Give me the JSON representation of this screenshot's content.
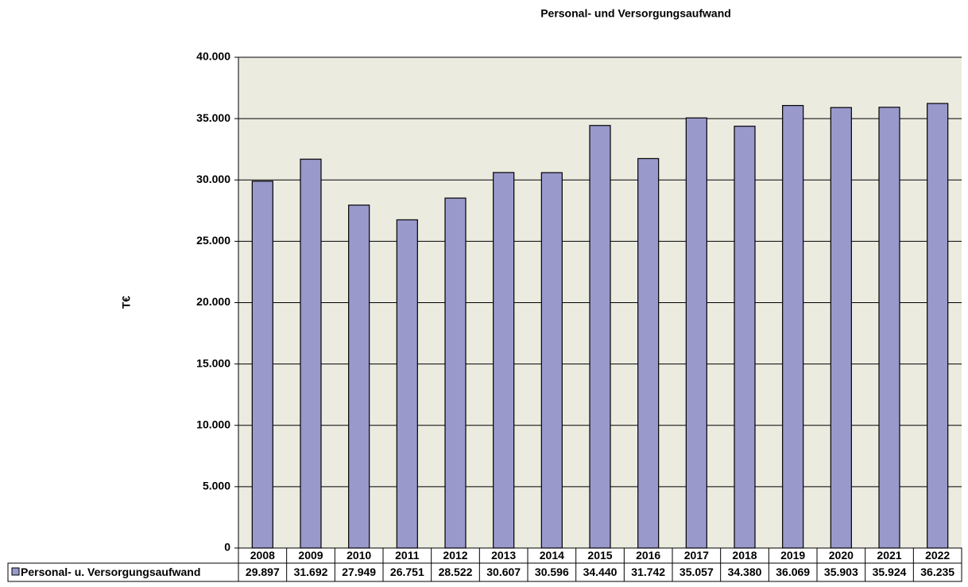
{
  "chart_data": {
    "type": "bar",
    "title": "Personal- und Versorgungsaufwand",
    "y_label": "T€",
    "categories": [
      "2008",
      "2009",
      "2010",
      "2011",
      "2012",
      "2013",
      "2014",
      "2015",
      "2016",
      "2017",
      "2018",
      "2019",
      "2020",
      "2021",
      "2022"
    ],
    "series": [
      {
        "name": "Personal- u. Versorgungsaufwand",
        "color": "#9999cc",
        "values": [
          29897,
          31692,
          27949,
          26751,
          28522,
          30607,
          30596,
          34440,
          31742,
          35057,
          34380,
          36069,
          35903,
          35924,
          36235
        ],
        "value_labels": [
          "29.897",
          "31.692",
          "27.949",
          "26.751",
          "28.522",
          "30.607",
          "30.596",
          "34.440",
          "31.742",
          "35.057",
          "34.380",
          "36.069",
          "35.903",
          "35.924",
          "36.235"
        ]
      }
    ],
    "ylim": [
      0,
      40000
    ],
    "yticks": [
      0,
      {
        "value": 5000,
        "label": "5.000"
      },
      {
        "value": 10000,
        "label": "10.000"
      },
      {
        "value": 15000,
        "label": "15.000"
      },
      {
        "value": 20000,
        "label": "20.000"
      },
      {
        "value": 25000,
        "label": "25.000"
      },
      {
        "value": 30000,
        "label": "30.000"
      },
      {
        "value": 35000,
        "label": "35.000"
      },
      {
        "value": 40000,
        "label": "40.000"
      }
    ],
    "grid": true
  }
}
